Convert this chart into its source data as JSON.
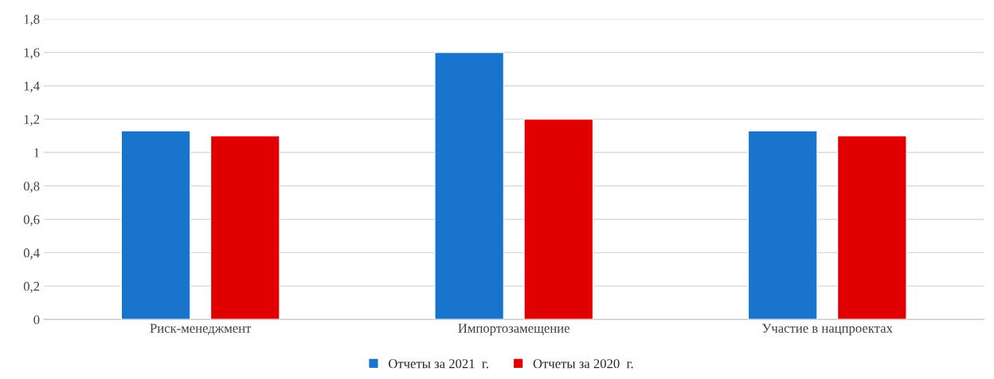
{
  "chart_data": {
    "type": "bar",
    "categories": [
      "Риск-менеджмент",
      "Импортозамещение",
      "Участие в нацпроектах"
    ],
    "series": [
      {
        "name": "Отчеты за 2021  г.",
        "color": "#1874cd",
        "values": [
          1.13,
          1.6,
          1.13
        ]
      },
      {
        "name": "Отчеты за 2020  г.",
        "color": "#e00000",
        "values": [
          1.1,
          1.2,
          1.1
        ]
      }
    ],
    "ylim": [
      0,
      1.8
    ],
    "yticks": [
      0,
      {
        "value": 0.2,
        "label": "0,2"
      },
      {
        "value": 0.4,
        "label": "0,4"
      },
      {
        "value": 0.6,
        "label": "0,6"
      },
      {
        "value": 0.8,
        "label": "0,8"
      },
      1,
      {
        "value": 1.2,
        "label": "1,2"
      },
      {
        "value": 1.4,
        "label": "1,4"
      },
      {
        "value": 1.6,
        "label": "1,6"
      },
      {
        "value": 1.8,
        "label": "1,8"
      }
    ],
    "grid": "y",
    "legend": "bottom"
  }
}
